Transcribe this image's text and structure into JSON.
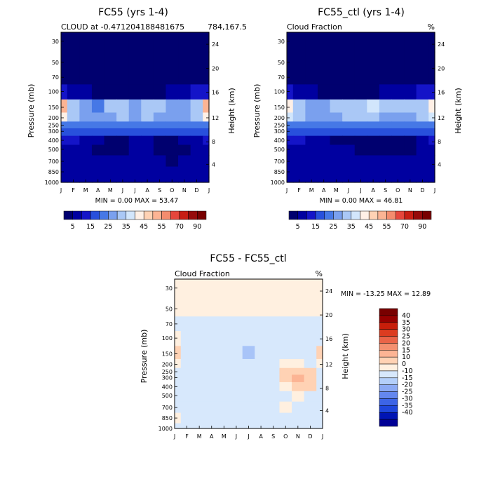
{
  "colors": {
    "abs_scale": [
      "#00006f",
      "#0000a0",
      "#1414c8",
      "#2850dc",
      "#4678e6",
      "#7aa0ee",
      "#aac8f6",
      "#d2e6fc",
      "#fff0e6",
      "#ffd2b4",
      "#fcb494",
      "#f48c6e",
      "#e6463c",
      "#c81e14",
      "#960a0a",
      "#780000"
    ],
    "diff_scale": [
      "#000096",
      "#0014b4",
      "#1e46dc",
      "#3c64e6",
      "#6487ee",
      "#8caaf4",
      "#b4cffa",
      "#d7e8fc",
      "#fff0e0",
      "#ffd2b4",
      "#fcb494",
      "#f49070",
      "#ea6448",
      "#dc3c20",
      "#c81e0a",
      "#960000",
      "#780000"
    ]
  },
  "chart_data": [
    {
      "id": "panel1",
      "type": "heatmap",
      "title": "FC55 (yrs 1-4)",
      "subtitle_left": "CLOUD at -0.471204188481675",
      "subtitle_right": "784,167.5",
      "ylabel": "Pressure (mb)",
      "y2label": "Height (km)",
      "x": [
        "J",
        "F",
        "M",
        "A",
        "M",
        "J",
        "J",
        "A",
        "S",
        "O",
        "N",
        "D",
        "J"
      ],
      "pressure_ticks": [
        "30",
        "50",
        "70",
        "100",
        "150",
        "200",
        "250",
        "300",
        "400",
        "500",
        "700",
        "850",
        "1000"
      ],
      "height_ticks": [
        "24",
        "20",
        "16",
        "12",
        "8",
        "4"
      ],
      "minmax": "MIN =    0.00 MAX =  53.47",
      "colorbar_labels": [
        "5",
        "15",
        "25",
        "35",
        "45",
        "55",
        "70",
        "90"
      ],
      "values_rows_by_pressure": [
        [
          0,
          0,
          0,
          0,
          0,
          0,
          0,
          0,
          0,
          0,
          0,
          0,
          0
        ],
        [
          0,
          0,
          0,
          0,
          0,
          0,
          0,
          0,
          0,
          0,
          0,
          0,
          0
        ],
        [
          1,
          0,
          0,
          0,
          0,
          0,
          0,
          0,
          0,
          0,
          0,
          0,
          1
        ],
        [
          12,
          8,
          5,
          3,
          2,
          2,
          3,
          3,
          4,
          6,
          8,
          10,
          12
        ],
        [
          50,
          30,
          25,
          22,
          30,
          32,
          28,
          34,
          30,
          25,
          28,
          32,
          50
        ],
        [
          40,
          30,
          28,
          26,
          28,
          30,
          28,
          32,
          28,
          26,
          28,
          32,
          40
        ],
        [
          22,
          22,
          20,
          20,
          22,
          22,
          22,
          22,
          22,
          20,
          20,
          22,
          22
        ],
        [
          16,
          16,
          15,
          15,
          16,
          18,
          18,
          17,
          16,
          15,
          15,
          15,
          16
        ],
        [
          10,
          10,
          9,
          6,
          2,
          2,
          6,
          8,
          4,
          3,
          6,
          9,
          10
        ],
        [
          8,
          8,
          7,
          4,
          2,
          4,
          8,
          6,
          3,
          2,
          4,
          7,
          8
        ],
        [
          7,
          7,
          6,
          6,
          7,
          8,
          8,
          7,
          6,
          4,
          6,
          7,
          7
        ],
        [
          6,
          6,
          6,
          6,
          6,
          6,
          6,
          6,
          6,
          6,
          6,
          6,
          6
        ],
        [
          5,
          5,
          5,
          5,
          5,
          5,
          5,
          5,
          5,
          5,
          5,
          5,
          5
        ]
      ]
    },
    {
      "id": "panel2",
      "type": "heatmap",
      "title": "FC55_ctl (yrs 1-4)",
      "subtitle_left": "Cloud Fraction",
      "subtitle_right": "%",
      "ylabel": "Pressure (mb)",
      "y2label": "Height (km)",
      "x": [
        "J",
        "F",
        "M",
        "A",
        "M",
        "J",
        "J",
        "A",
        "S",
        "O",
        "N",
        "D",
        "J"
      ],
      "pressure_ticks": [
        "30",
        "50",
        "70",
        "100",
        "150",
        "200",
        "250",
        "300",
        "400",
        "500",
        "700",
        "850",
        "1000"
      ],
      "height_ticks": [
        "24",
        "20",
        "16",
        "12",
        "8",
        "4"
      ],
      "minmax": "MIN =    0.00 MAX =  46.81",
      "colorbar_labels": [
        "5",
        "15",
        "25",
        "35",
        "45",
        "55",
        "70",
        "90"
      ],
      "values_rows_by_pressure": [
        [
          0,
          0,
          0,
          0,
          0,
          0,
          0,
          0,
          0,
          0,
          0,
          0,
          0
        ],
        [
          0,
          0,
          0,
          0,
          0,
          0,
          0,
          0,
          0,
          0,
          0,
          0,
          0
        ],
        [
          1,
          0,
          0,
          0,
          0,
          0,
          0,
          0,
          0,
          0,
          0,
          0,
          1
        ],
        [
          12,
          8,
          5,
          4,
          3,
          3,
          4,
          4,
          5,
          6,
          8,
          10,
          12
        ],
        [
          44,
          32,
          28,
          26,
          30,
          34,
          30,
          38,
          32,
          30,
          30,
          34,
          44
        ],
        [
          38,
          30,
          28,
          27,
          28,
          30,
          30,
          32,
          28,
          28,
          28,
          32,
          38
        ],
        [
          22,
          22,
          20,
          20,
          22,
          22,
          22,
          22,
          22,
          20,
          20,
          22,
          22
        ],
        [
          16,
          16,
          15,
          15,
          16,
          17,
          17,
          17,
          16,
          15,
          15,
          15,
          16
        ],
        [
          10,
          10,
          9,
          7,
          4,
          3,
          3,
          3,
          3,
          2,
          4,
          8,
          10
        ],
        [
          8,
          8,
          7,
          5,
          6,
          5,
          3,
          3,
          2,
          2,
          3,
          7,
          8
        ],
        [
          7,
          7,
          6,
          6,
          7,
          8,
          8,
          7,
          6,
          5,
          6,
          7,
          7
        ],
        [
          6,
          6,
          6,
          6,
          6,
          6,
          6,
          6,
          6,
          6,
          6,
          6,
          6
        ],
        [
          5,
          5,
          5,
          5,
          5,
          5,
          5,
          5,
          5,
          5,
          5,
          5,
          5
        ]
      ]
    },
    {
      "id": "panel3",
      "type": "heatmap",
      "title": "FC55 - FC55_ctl",
      "subtitle_left": "Cloud Fraction",
      "subtitle_right": "%",
      "ylabel": "Pressure (mb)",
      "y2label": "Height (km)",
      "x": [
        "J",
        "F",
        "M",
        "A",
        "M",
        "J",
        "J",
        "A",
        "S",
        "O",
        "N",
        "D",
        "J"
      ],
      "pressure_ticks": [
        "30",
        "50",
        "70",
        "100",
        "150",
        "200",
        "250",
        "300",
        "400",
        "500",
        "700",
        "850",
        "1000"
      ],
      "height_ticks": [
        "24",
        "20",
        "16",
        "12",
        "8",
        "4"
      ],
      "minmax": "MIN = -13.25 MAX =  12.89",
      "colorbar_labels": [
        "40",
        "35",
        "30",
        "25",
        "20",
        "15",
        "10",
        "0",
        "-10",
        "-15",
        "-20",
        "-25",
        "-30",
        "-35",
        "-40"
      ],
      "values_rows_by_pressure": [
        [
          0.5,
          0.5,
          0.5,
          0.5,
          0.5,
          0.5,
          0.5,
          0.5,
          0.5,
          0.5,
          0.5,
          0.5,
          0.5
        ],
        [
          0.5,
          0.5,
          0.5,
          0.5,
          0.5,
          0.5,
          0.5,
          0.5,
          0.5,
          0.5,
          0.5,
          0.5,
          0.5
        ],
        [
          -1,
          -1,
          -1,
          -1,
          -1,
          -1,
          -1,
          -1,
          -1,
          -1,
          -1,
          -1,
          -1
        ],
        [
          1,
          -1,
          -1,
          -1,
          -1,
          -1,
          -1,
          -1,
          -1,
          -1,
          -1,
          -1,
          -1
        ],
        [
          2,
          -1,
          -1,
          -1,
          -1,
          -1,
          -2,
          -1,
          -1,
          -1,
          -1,
          -1,
          2
        ],
        [
          1,
          -1,
          -1,
          -1,
          -1,
          -1,
          -1,
          -1,
          -1,
          1,
          1,
          -1,
          1
        ],
        [
          -1,
          -1,
          -1,
          -1,
          -1,
          -1,
          -1,
          -1,
          -1,
          2,
          2,
          2,
          -1
        ],
        [
          -1,
          -1,
          -1,
          -1,
          -1,
          -1,
          -1,
          -1,
          -1,
          2,
          3,
          2,
          -1
        ],
        [
          -1,
          -1,
          -1,
          -1,
          -1,
          -1,
          -1,
          -1,
          -1,
          1,
          2,
          2,
          -1
        ],
        [
          -1,
          -1,
          -1,
          -1,
          -1,
          -1,
          -1,
          -1,
          -1,
          -1,
          1,
          -1,
          -1
        ],
        [
          -1,
          -1,
          -1,
          -1,
          -1,
          -1,
          -1,
          -1,
          -1,
          1,
          -1,
          -1,
          -1
        ],
        [
          1,
          -1,
          -1,
          -1,
          -1,
          -1,
          -1,
          -1,
          -1,
          -1,
          -1,
          -1,
          -1
        ],
        [
          -1,
          -1,
          -1,
          -1,
          -1,
          -1,
          -1,
          -1,
          -1,
          -1,
          -1,
          -1,
          -1
        ]
      ]
    }
  ]
}
